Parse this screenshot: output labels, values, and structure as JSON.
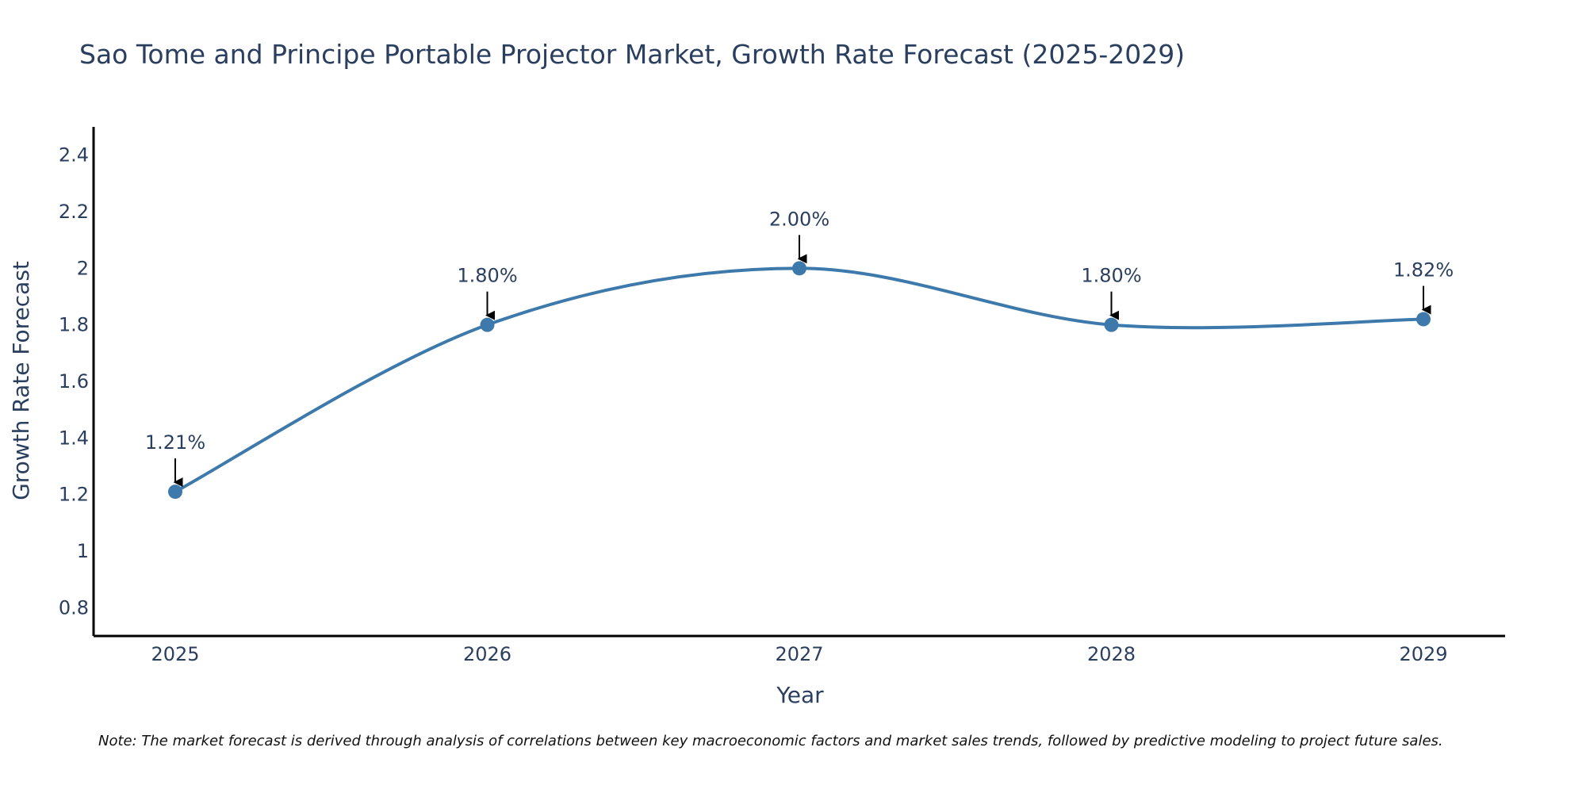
{
  "chart_data": {
    "type": "line",
    "title": "Sao Tome and Principe Portable Projector Market, Growth Rate Forecast (2025-2029)",
    "xlabel": "Year",
    "ylabel": "Growth Rate Forecast",
    "categories": [
      "2025",
      "2026",
      "2027",
      "2028",
      "2029"
    ],
    "series": [
      {
        "name": "Growth Rate Forecast",
        "values": [
          1.21,
          1.8,
          2.0,
          1.8,
          1.82
        ],
        "labels": [
          "1.21%",
          "1.80%",
          "2.00%",
          "1.80%",
          "1.82%"
        ]
      }
    ],
    "ylim": [
      0.7,
      2.5
    ],
    "yticks": [
      0.8,
      1,
      1.2,
      1.4,
      1.6,
      1.8,
      2,
      2.2,
      2.4
    ],
    "ytick_labels": [
      "0.8",
      "1",
      "1.2",
      "1.4",
      "1.6",
      "1.8",
      "2",
      "2.2",
      "2.4"
    ],
    "grid": false,
    "line_color": "#3d7aab",
    "marker_color": "#3d7aab",
    "arrow_color": "#000000",
    "note": "Note: The market forecast is derived through analysis of correlations between key macroeconomic factors and market sales trends, followed by predictive modeling to project future sales."
  }
}
